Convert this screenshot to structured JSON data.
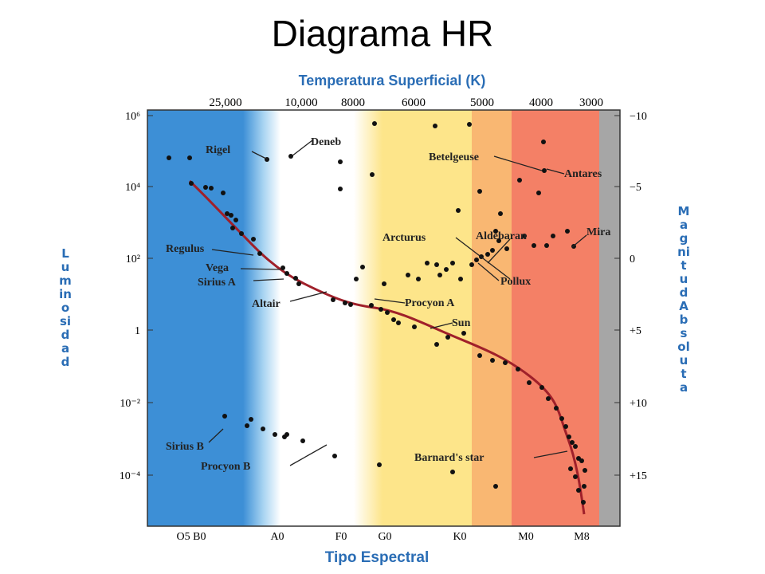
{
  "title": "Diagrama HR",
  "top_axis": {
    "title": "Temperatura Superficial (K)",
    "ticks": [
      "25,000",
      "10,000",
      "8000",
      "6000",
      "5000",
      "4000",
      "3000"
    ]
  },
  "left_axis": {
    "title": "Luminosidad",
    "ticks": [
      "10⁶",
      "10⁴",
      "10²",
      "1",
      "10⁻²",
      "10⁻⁴"
    ]
  },
  "right_axis": {
    "title": "Magnitud Absoluta",
    "ticks": [
      "−10",
      "−5",
      "0",
      "+5",
      "+10",
      "+15"
    ]
  },
  "bottom_axis": {
    "title": "Tipo Espectral",
    "ticks": [
      "O5 B0",
      "A0",
      "F0",
      "G0",
      "K0",
      "M0",
      "M8"
    ]
  },
  "stars": [
    "Rigel",
    "Deneb",
    "Betelgeuse",
    "Antares",
    "Arcturus",
    "Aldebaran",
    "Mira",
    "Pollux",
    "Regulus",
    "Vega",
    "Sirius A",
    "Altair",
    "Procyon A",
    "Sun",
    "Sirius B",
    "Procyon B",
    "Barnard's star"
  ]
}
